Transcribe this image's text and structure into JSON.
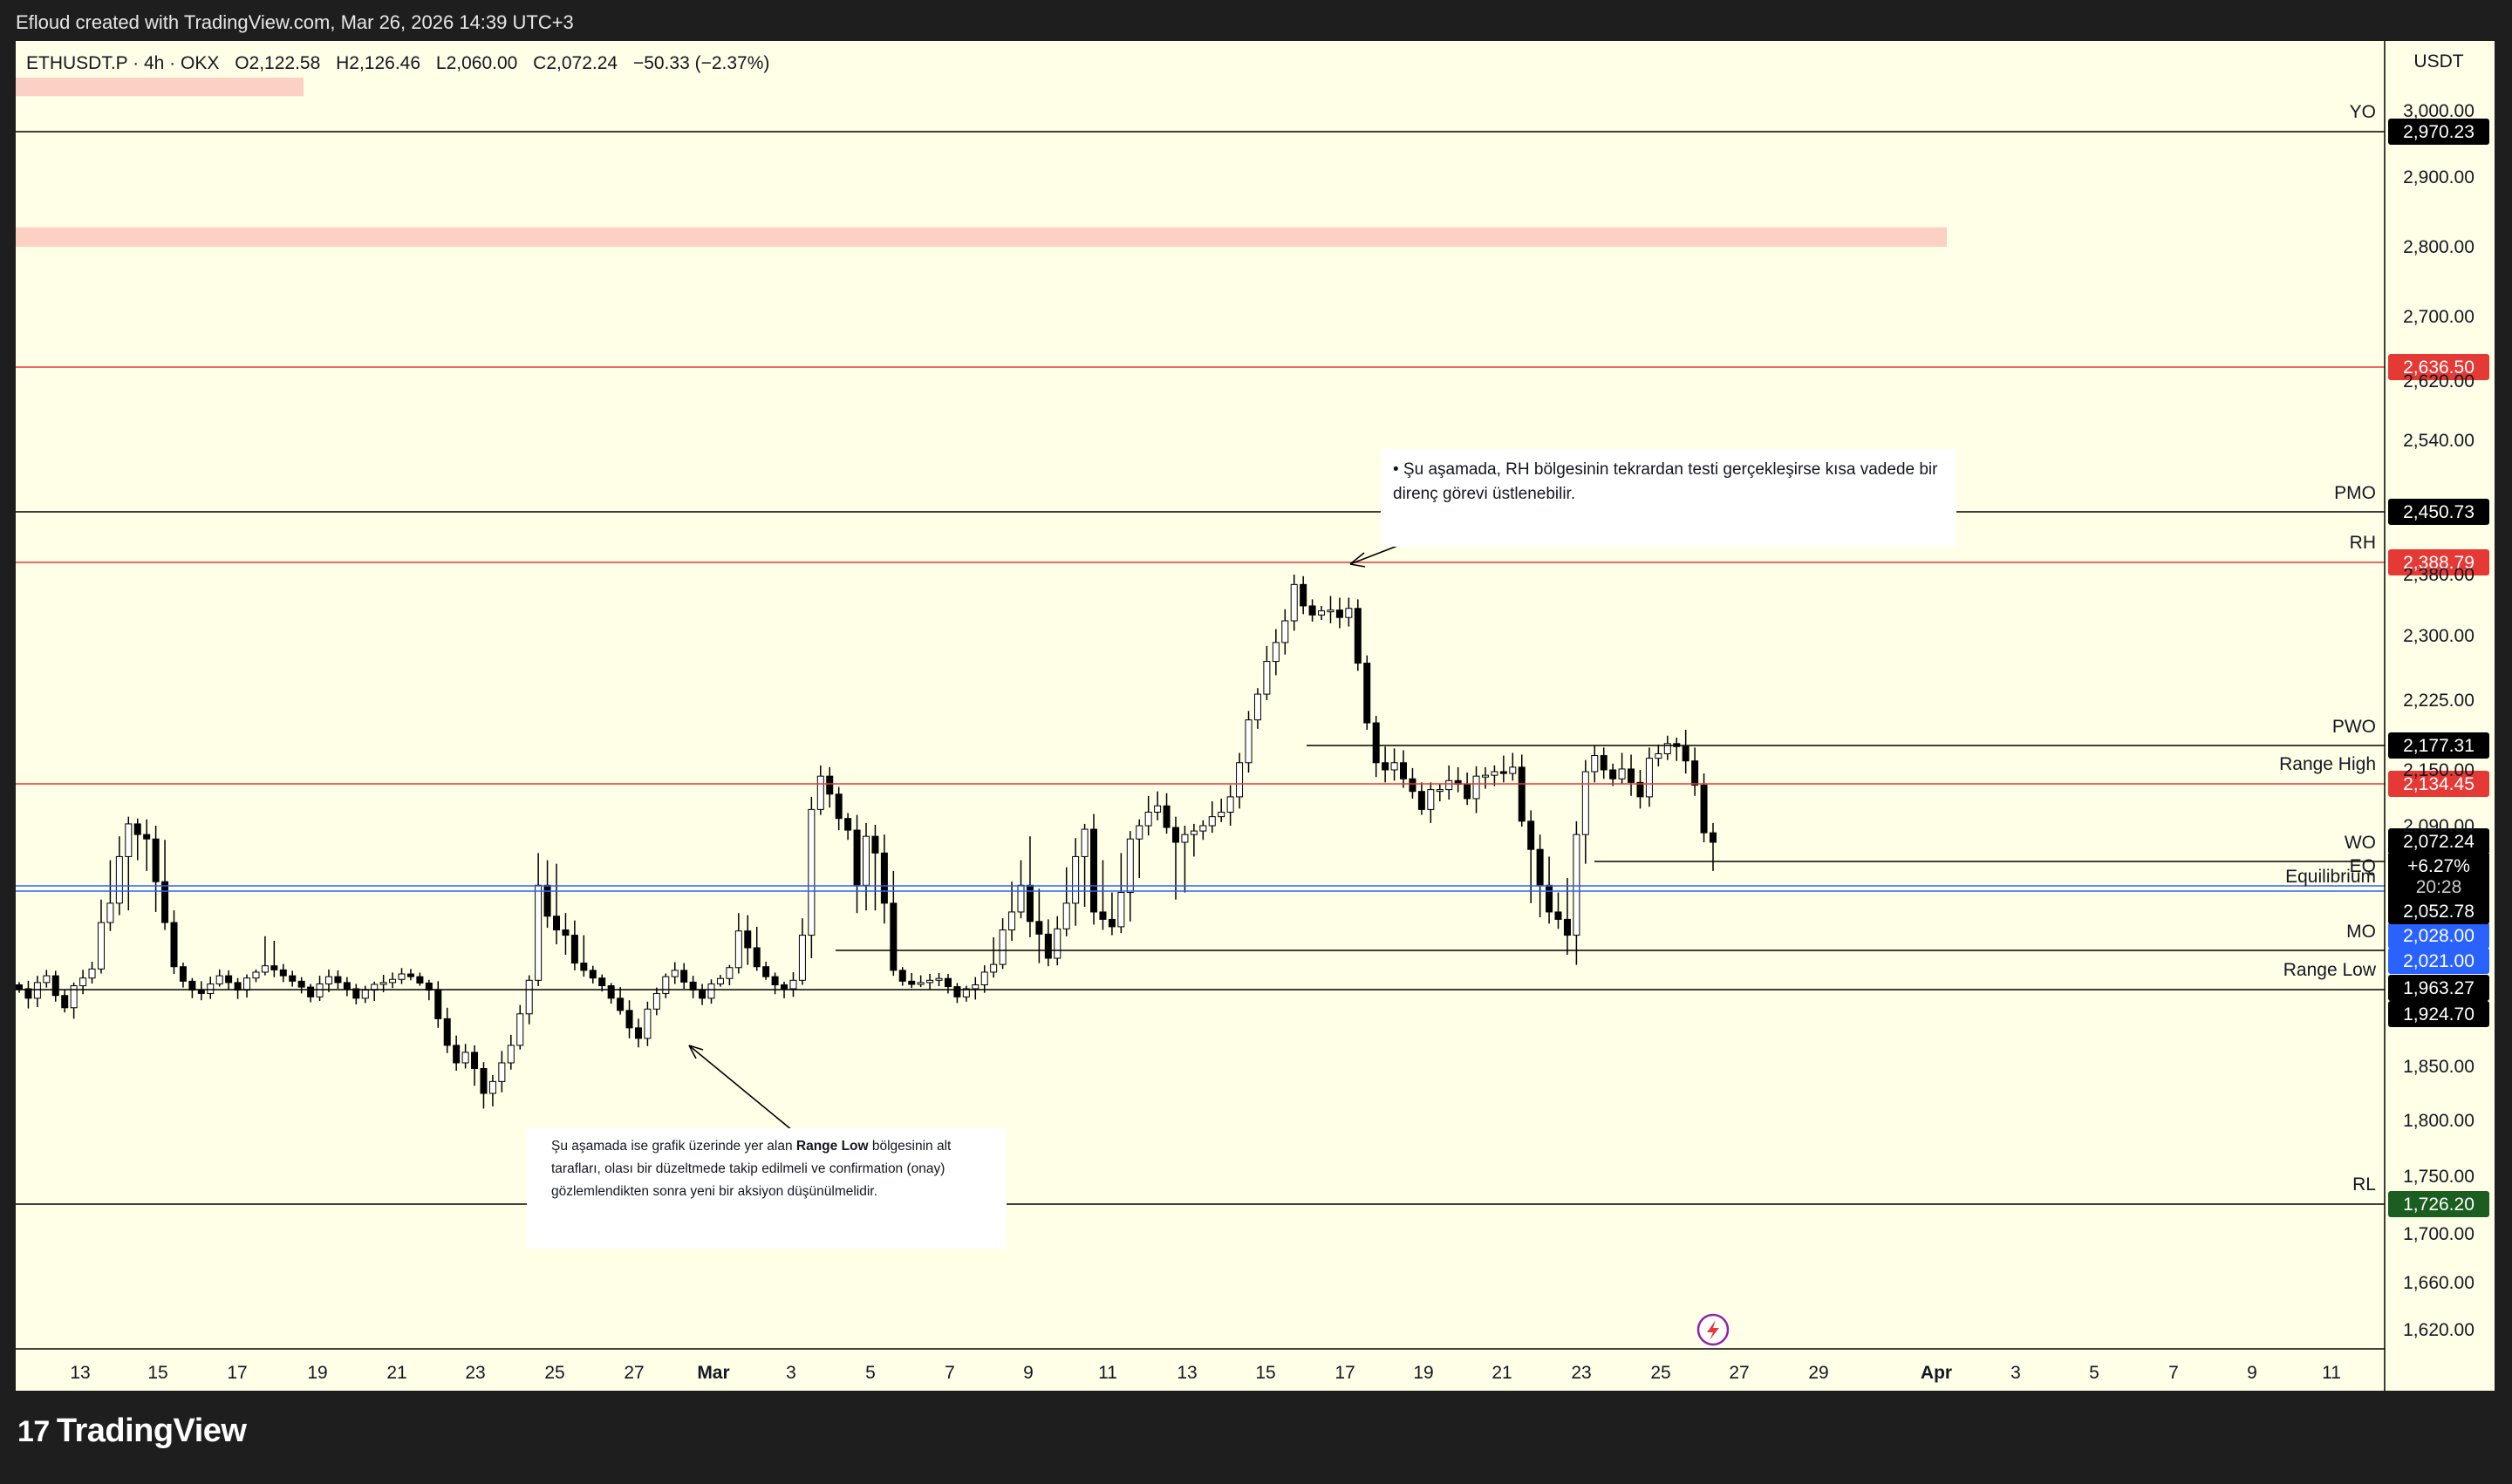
{
  "header": {
    "credit": "Efloud created with TradingView.com, Mar 26, 2026 14:39 UTC+3"
  },
  "symbol": {
    "name": "ETHUSDT.P · 4h · OKX",
    "open": "O2,122.58",
    "high": "H2,126.46",
    "low": "L2,060.00",
    "close": "C2,072.24",
    "change": "−50.33 (−2.37%)"
  },
  "axis": {
    "currency": "USDT"
  },
  "brand": {
    "name": "TradingView",
    "mark": "17"
  },
  "annotations": {
    "top": "• Şu aşamada, RH bölgesinin tekrardan testi gerçekleşirse kısa vadede bir direnç görevi üstlenebilir.",
    "bottom_pre": "Şu aşamada ise grafik üzerinde yer alan ",
    "bottom_bold": "Range Low",
    "bottom_post": " bölgesinin alt tarafları, olası bir düzeltmede takip edilmeli ve confirmation (onay) gözlemlendikten sonra yeni bir aksiyon düşünülmelidir."
  },
  "colors": {
    "background": "#fffee6",
    "candle_up": "#ffffff",
    "candle_down": "#000000",
    "level_black": "#000000",
    "level_red": "#e53935",
    "level_blue": "#2962ff",
    "rl_green": "#1b5e20",
    "zone": "#fdd0c4"
  },
  "chart_data": {
    "type": "candlestick",
    "title": "ETHUSDT.P · 4h · OKX",
    "ylim": [
      1600,
      3050
    ],
    "y_ticks": [
      "3,000.00",
      "2,900.00",
      "2,800.00",
      "2,700.00",
      "2,620.00",
      "2,540.00",
      "2,380.00",
      "2,300.00",
      "2,225.00",
      "2,150.00",
      "2,090.00",
      "1,850.00",
      "1,800.00",
      "1,750.00",
      "1,700.00",
      "1,660.00",
      "1,620.00"
    ],
    "x_ticks": [
      "13",
      "15",
      "17",
      "19",
      "21",
      "23",
      "25",
      "27",
      "Mar",
      "3",
      "5",
      "7",
      "9",
      "11",
      "13",
      "15",
      "17",
      "19",
      "21",
      "23",
      "25",
      "27",
      "29",
      "Apr",
      "3",
      "5",
      "7",
      "9",
      "11"
    ],
    "last_price": {
      "value": "2,072.24",
      "change": "+6.27%",
      "countdown": "20:28"
    },
    "levels": [
      {
        "label": "YO",
        "value": 2970.23,
        "price": "2,970.23",
        "style": "black"
      },
      {
        "label": "",
        "value": 2636.5,
        "price": "2,636.50",
        "style": "red"
      },
      {
        "label": "PMO",
        "value": 2450.73,
        "price": "2,450.73",
        "style": "black"
      },
      {
        "label": "RH",
        "value": 2388.79,
        "price": "2,388.79",
        "style": "red"
      },
      {
        "label": "PWO",
        "value": 2177.31,
        "price": "2,177.31",
        "style": "black"
      },
      {
        "label": "Range High",
        "value": 2134.45,
        "price": "2,134.45",
        "style": "red"
      },
      {
        "label": "WO",
        "value": 2072.24,
        "price": "2,072.24",
        "style": "black"
      },
      {
        "label": "EQ",
        "value": 2028.0,
        "price": "2,028.00",
        "style": "blue"
      },
      {
        "label": "Equilibrium",
        "value": 2021.0,
        "price": "2,021.00",
        "style": "blue"
      },
      {
        "label": "",
        "value": 2052.78,
        "price": "2,052.78",
        "style": "black-tag"
      },
      {
        "label": "MO",
        "value": 1963.27,
        "price": "1,963.27",
        "style": "black"
      },
      {
        "label": "Range Low",
        "value": 1924.7,
        "price": "1,924.70",
        "style": "black"
      },
      {
        "label": "RL",
        "value": 1726.2,
        "price": "1,726.20",
        "style": "green"
      }
    ],
    "zones": [
      {
        "from": 2800,
        "to": 2828
      },
      {
        "from": 3022,
        "to": 3050
      }
    ],
    "series_close": [
      1962,
      1948,
      1975,
      1990,
      1952,
      1934,
      1968,
      1985,
      2005,
      2042,
      2055,
      2068,
      2092,
      2080,
      2075,
      2061,
      2042,
      2010,
      1978,
      1960,
      1955,
      1972,
      1990,
      1975,
      1960,
      1985,
      1998,
      2012,
      2003,
      1990,
      1978,
      1965,
      1950,
      1972,
      1988,
      1975,
      1962,
      1948,
      1960,
      1971,
      1975,
      1982,
      1994,
      1988,
      1974,
      1960,
      1918,
      1880,
      1855,
      1870,
      1848,
      1825,
      1836,
      1855,
      1880,
      1925,
      1980,
      2060,
      2048,
      2035,
      2030,
      2018,
      2002,
      1985,
      1968,
      1948,
      1930,
      1905,
      1890,
      1932,
      1955,
      1988,
      2002,
      1976,
      1960,
      1948,
      1972,
      1984,
      2008,
      2034,
      2025,
      2010,
      1988,
      1970,
      1962,
      1980,
      2030,
      2108,
      2145,
      2125,
      2098,
      2085,
      2060,
      2078,
      2069,
      2055,
      2002,
      1978,
      1971,
      1975,
      1980,
      1984,
      1966,
      1950,
      1962,
      1970,
      1998,
      2015,
      2035,
      2052,
      2060,
      2043,
      2031,
      2022,
      2036,
      2055,
      2068,
      2086,
      2052,
      2045,
      2038,
      2058,
      2075,
      2090,
      2105,
      2112,
      2088,
      2072,
      2080,
      2084,
      2090,
      2100,
      2105,
      2122,
      2160,
      2205,
      2232,
      2270,
      2292,
      2318,
      2362,
      2336,
      2325,
      2330,
      2331,
      2322,
      2333,
      2268,
      2202,
      2160,
      2152,
      2160,
      2142,
      2128,
      2108,
      2130,
      2130,
      2140,
      2136,
      2120,
      2145,
      2146,
      2150,
      2148,
      2155,
      2095,
      2070,
      2060,
      2052,
      2045,
      2030,
      2080,
      2150,
      2168,
      2152,
      2142,
      2153,
      2138,
      2122,
      2165,
      2170,
      2181,
      2178,
      2162,
      2135,
      2082,
      2072
    ]
  }
}
